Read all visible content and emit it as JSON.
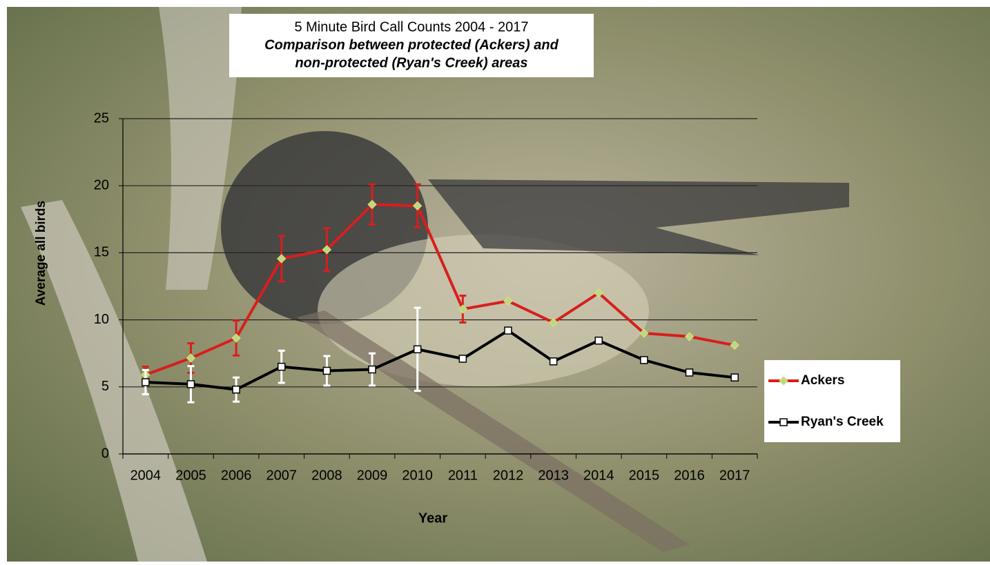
{
  "chart_data": {
    "type": "line",
    "title": "5 Minute Bird Call Counts 2004 - 2017",
    "subtitle": [
      "Comparison between protected (Ackers) and",
      "non-protected (Ryan's Creek) areas"
    ],
    "x_label": "Year",
    "y_label": "Average all birds",
    "categories": [
      "2004",
      "2005",
      "2006",
      "2007",
      "2008",
      "2009",
      "2010",
      "2011",
      "2012",
      "2013",
      "2014",
      "2015",
      "2016",
      "2017"
    ],
    "series": [
      {
        "name": "Ackers",
        "color": "#d81e1e",
        "marker_color": "#b8d98a",
        "values": [
          5.9,
          7.15,
          8.64,
          14.56,
          15.23,
          18.6,
          18.5,
          10.8,
          11.4,
          9.8,
          12.0,
          9.0,
          8.75,
          8.1
        ],
        "errors": [
          0.6,
          1.1,
          1.3,
          1.7,
          1.6,
          1.5,
          1.6,
          1.0,
          null,
          null,
          null,
          null,
          null,
          null
        ]
      },
      {
        "name": "Ryan's Creek",
        "color": "#000000",
        "marker_color": "#ffffff",
        "error_color": "#ffffff",
        "values": [
          5.35,
          5.2,
          4.8,
          6.5,
          6.2,
          6.3,
          7.8,
          7.1,
          9.2,
          6.9,
          8.45,
          7.0,
          6.07,
          5.7
        ],
        "errors": [
          0.9,
          1.35,
          0.9,
          1.2,
          1.1,
          1.2,
          3.1,
          null,
          null,
          null,
          null,
          null,
          null,
          null
        ]
      }
    ],
    "ylim": [
      0,
      25
    ],
    "yticks": [
      0,
      5,
      10,
      15,
      20,
      25
    ],
    "grid": true,
    "legend": "right"
  }
}
